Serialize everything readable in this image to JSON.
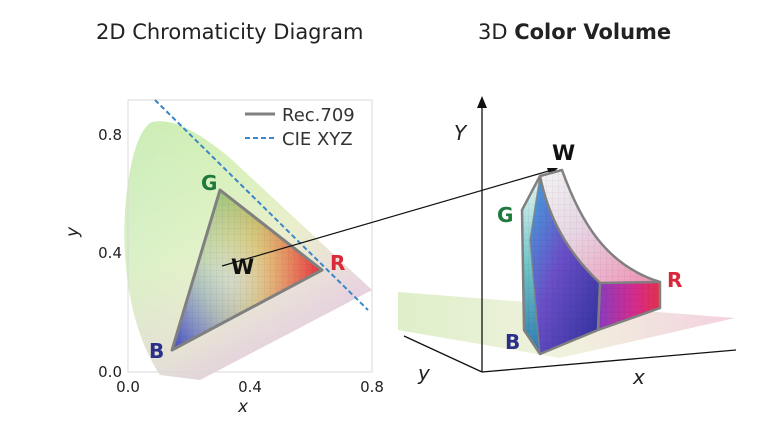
{
  "titles": {
    "left": "2D Chromaticity Diagram",
    "right_prefix": "3D ",
    "right_bold": "Color Volume"
  },
  "left_plot": {
    "x_ticks": [
      "0.0",
      "0.4",
      "0.8"
    ],
    "y_ticks": [
      "0.0",
      "0.4",
      "0.8"
    ],
    "x_label": "x",
    "y_label": "y",
    "legend": [
      {
        "label": "Rec.709",
        "style": "solid",
        "color": "#808080"
      },
      {
        "label": "CIE XYZ",
        "style": "dashed",
        "color": "#3a86c8"
      }
    ]
  },
  "primaries": {
    "red": {
      "label": "R",
      "color": "#d9283a"
    },
    "green": {
      "label": "G",
      "color": "#1d7a3c"
    },
    "blue": {
      "label": "B",
      "color": "#2a2f8a"
    },
    "white": {
      "label": "W",
      "color": "#111111"
    }
  },
  "right_plot": {
    "axis_x": "x",
    "axis_y": "y",
    "axis_Y": "Y"
  }
}
